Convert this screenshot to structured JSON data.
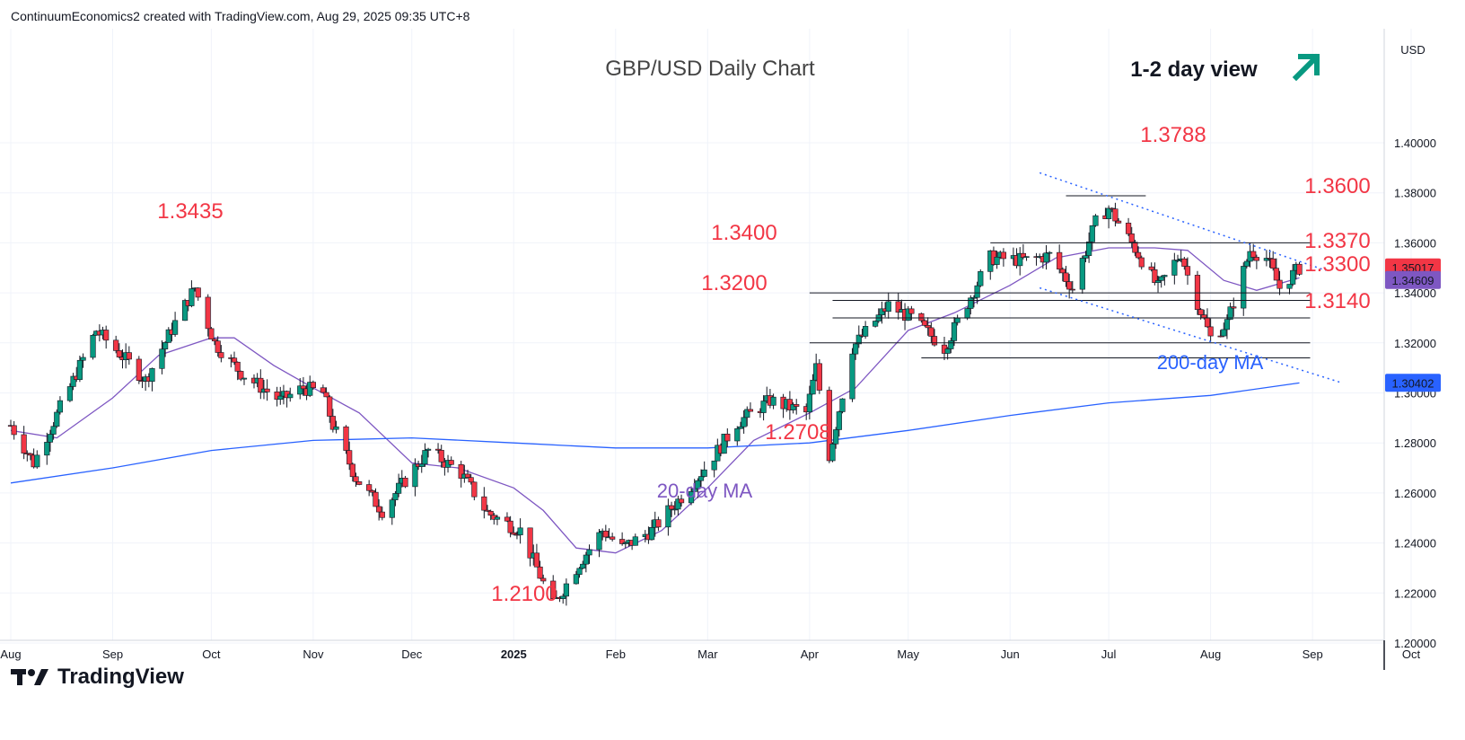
{
  "header": {
    "attribution": "ContinuumEconomics2 created with TradingView.com, Aug 29, 2025 09:35 UTC+8"
  },
  "footer": {
    "brand": "TradingView"
  },
  "colors": {
    "up": "#089981",
    "down": "#f23645",
    "ma20": "#7e57c2",
    "ma200": "#2962ff",
    "annotation": "#f23645",
    "arrow": "#089981"
  },
  "chart_data": {
    "type": "candlestick",
    "title": "GBP/USD Daily Chart",
    "view_label": "1-2 day view",
    "view_icon": "up-right-arrow-icon",
    "currency": "USD",
    "ylim": [
      1.18,
      1.415
    ],
    "y_ticks": [
      "1.40000",
      "1.38000",
      "1.36000",
      "1.34000",
      "1.32000",
      "1.30000",
      "1.28000",
      "1.26000",
      "1.24000",
      "1.22000",
      "1.20000"
    ],
    "x_ticks": [
      {
        "label": "Aug",
        "date": "2024-08-01"
      },
      {
        "label": "Sep",
        "date": "2024-09-01"
      },
      {
        "label": "Oct",
        "date": "2024-10-01"
      },
      {
        "label": "Nov",
        "date": "2024-11-01"
      },
      {
        "label": "Dec",
        "date": "2024-12-01"
      },
      {
        "label": "2025",
        "date": "2025-01-01"
      },
      {
        "label": "Feb",
        "date": "2025-02-01"
      },
      {
        "label": "Mar",
        "date": "2025-03-01"
      },
      {
        "label": "Apr",
        "date": "2025-04-01"
      },
      {
        "label": "May",
        "date": "2025-05-01"
      },
      {
        "label": "Jun",
        "date": "2025-06-01"
      },
      {
        "label": "Jul",
        "date": "2025-07-01"
      },
      {
        "label": "Aug",
        "date": "2025-08-01"
      },
      {
        "label": "Sep",
        "date": "2025-09-01"
      },
      {
        "label": "Oct",
        "date": "2025-10-01"
      }
    ],
    "price_anchors": [
      [
        "2024-08-01",
        1.287
      ],
      [
        "2024-08-08",
        1.272
      ],
      [
        "2024-08-20",
        1.305
      ],
      [
        "2024-08-27",
        1.325
      ],
      [
        "2024-09-06",
        1.312
      ],
      [
        "2024-09-11",
        1.305
      ],
      [
        "2024-09-20",
        1.328
      ],
      [
        "2024-09-26",
        1.342
      ],
      [
        "2024-10-02",
        1.32
      ],
      [
        "2024-10-10",
        1.308
      ],
      [
        "2024-10-22",
        1.297
      ],
      [
        "2024-10-29",
        1.302
      ],
      [
        "2024-11-04",
        1.3
      ],
      [
        "2024-11-07",
        1.287
      ],
      [
        "2024-11-14",
        1.266
      ],
      [
        "2024-11-22",
        1.253
      ],
      [
        "2024-12-06",
        1.277
      ],
      [
        "2024-12-16",
        1.268
      ],
      [
        "2024-12-24",
        1.252
      ],
      [
        "2025-01-03",
        1.245
      ],
      [
        "2025-01-13",
        1.215
      ],
      [
        "2025-01-21",
        1.232
      ],
      [
        "2025-01-28",
        1.245
      ],
      [
        "2025-02-03",
        1.238
      ],
      [
        "2025-02-12",
        1.245
      ],
      [
        "2025-02-24",
        1.263
      ],
      [
        "2025-03-03",
        1.275
      ],
      [
        "2025-03-10",
        1.288
      ],
      [
        "2025-03-20",
        1.297
      ],
      [
        "2025-03-31",
        1.292
      ],
      [
        "2025-04-03",
        1.31
      ],
      [
        "2025-04-07",
        1.275
      ],
      [
        "2025-04-14",
        1.318
      ],
      [
        "2025-04-25",
        1.335
      ],
      [
        "2025-05-02",
        1.33
      ],
      [
        "2025-05-12",
        1.318
      ],
      [
        "2025-05-26",
        1.354
      ],
      [
        "2025-06-06",
        1.353
      ],
      [
        "2025-06-13",
        1.355
      ],
      [
        "2025-06-20",
        1.342
      ],
      [
        "2025-06-27",
        1.368
      ],
      [
        "2025-07-01",
        1.374
      ],
      [
        "2025-07-08",
        1.36
      ],
      [
        "2025-07-16",
        1.342
      ],
      [
        "2025-07-23",
        1.356
      ],
      [
        "2025-07-25",
        1.347
      ],
      [
        "2025-08-01",
        1.322
      ],
      [
        "2025-08-06",
        1.328
      ],
      [
        "2025-08-13",
        1.357
      ],
      [
        "2025-08-18",
        1.354
      ],
      [
        "2025-08-22",
        1.342
      ],
      [
        "2025-08-28",
        1.35
      ]
    ],
    "series": [
      {
        "name": "20-day MA",
        "color": "#7e57c2",
        "points": [
          [
            "2024-08-01",
            1.285
          ],
          [
            "2024-08-15",
            1.282
          ],
          [
            "2024-09-01",
            1.298
          ],
          [
            "2024-09-15",
            1.315
          ],
          [
            "2024-10-01",
            1.322
          ],
          [
            "2024-10-08",
            1.322
          ],
          [
            "2024-10-20",
            1.311
          ],
          [
            "2024-11-01",
            1.302
          ],
          [
            "2024-11-15",
            1.292
          ],
          [
            "2024-12-01",
            1.272
          ],
          [
            "2024-12-15",
            1.27
          ],
          [
            "2025-01-01",
            1.262
          ],
          [
            "2025-01-10",
            1.253
          ],
          [
            "2025-01-20",
            1.238
          ],
          [
            "2025-02-01",
            1.236
          ],
          [
            "2025-02-15",
            1.245
          ],
          [
            "2025-03-01",
            1.262
          ],
          [
            "2025-03-15",
            1.281
          ],
          [
            "2025-04-01",
            1.292
          ],
          [
            "2025-04-15",
            1.302
          ],
          [
            "2025-05-01",
            1.325
          ],
          [
            "2025-05-15",
            1.332
          ],
          [
            "2025-06-01",
            1.343
          ],
          [
            "2025-06-15",
            1.354
          ],
          [
            "2025-07-01",
            1.358
          ],
          [
            "2025-07-15",
            1.358
          ],
          [
            "2025-07-25",
            1.357
          ],
          [
            "2025-08-05",
            1.345
          ],
          [
            "2025-08-15",
            1.341
          ],
          [
            "2025-08-28",
            1.346
          ]
        ]
      },
      {
        "name": "200-day MA",
        "color": "#2962ff",
        "points": [
          [
            "2024-08-01",
            1.264
          ],
          [
            "2024-09-01",
            1.27
          ],
          [
            "2024-10-01",
            1.277
          ],
          [
            "2024-11-01",
            1.281
          ],
          [
            "2024-12-01",
            1.282
          ],
          [
            "2025-01-01",
            1.28
          ],
          [
            "2025-02-01",
            1.278
          ],
          [
            "2025-03-01",
            1.278
          ],
          [
            "2025-04-01",
            1.28
          ],
          [
            "2025-05-01",
            1.285
          ],
          [
            "2025-06-01",
            1.291
          ],
          [
            "2025-07-01",
            1.296
          ],
          [
            "2025-08-01",
            1.299
          ],
          [
            "2025-08-28",
            1.304
          ]
        ]
      }
    ],
    "price_labels": [
      {
        "label": "1.35017",
        "value": 1.35017,
        "color": "#f23645"
      },
      {
        "label": "1.34609",
        "value": 1.34609,
        "color": "#7e57c2"
      },
      {
        "label": "1.30402",
        "value": 1.30402,
        "color": "#2962ff"
      }
    ],
    "levels": [
      {
        "label": "1.3788",
        "value": 1.3788,
        "from": "2025-06-18",
        "to": "2025-07-09"
      },
      {
        "label": "1.3600",
        "value": 1.36,
        "from": "2025-05-26",
        "to": "2025-08-28"
      },
      {
        "label": "1.3400",
        "value": 1.34,
        "from": "2025-04-01",
        "to": "2025-08-28"
      },
      {
        "label": "1.3370",
        "value": 1.337,
        "from": "2025-04-08",
        "to": "2025-08-28"
      },
      {
        "label": "1.3300",
        "value": 1.33,
        "from": "2025-04-08",
        "to": "2025-08-28"
      },
      {
        "label": "1.3200",
        "value": 1.32,
        "from": "2025-04-01",
        "to": "2025-08-28"
      },
      {
        "label": "1.3140",
        "value": 1.314,
        "from": "2025-05-05",
        "to": "2025-08-28"
      }
    ],
    "trendlines": [
      {
        "from": [
          "2025-06-10",
          1.388
        ],
        "to": [
          "2025-09-05",
          1.349
        ]
      },
      {
        "from": [
          "2025-06-10",
          1.342
        ],
        "to": [
          "2025-09-10",
          1.304
        ]
      }
    ],
    "annotations": [
      {
        "text": "1.3435",
        "color": "#f23645"
      },
      {
        "text": "1.2100",
        "color": "#f23645"
      },
      {
        "text": "1.2708",
        "color": "#f23645"
      },
      {
        "text": "20-day MA",
        "color": "#7e57c2"
      },
      {
        "text": "200-day MA",
        "color": "#2962ff"
      }
    ]
  }
}
